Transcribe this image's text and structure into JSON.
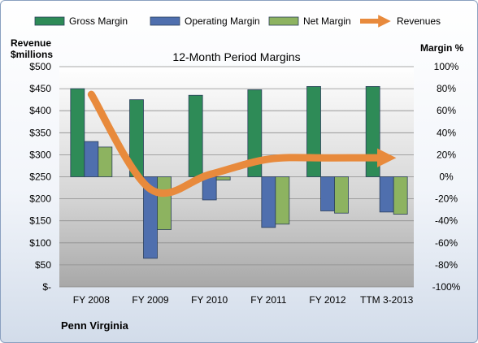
{
  "chart_data": {
    "type": "bar",
    "title": "12-Month Period Margins",
    "categories": [
      "FY 2008",
      "FY 2009",
      "FY 2010",
      "FY 2011",
      "FY 2012",
      "TTM 3-2013"
    ],
    "series": [
      {
        "name": "Gross Margin",
        "axis": "right",
        "color": "#2e8b57",
        "values": [
          80,
          70,
          74,
          79,
          82,
          82
        ]
      },
      {
        "name": "Operating Margin",
        "axis": "right",
        "color": "#4f6fae",
        "values": [
          32,
          -74,
          -21,
          -46,
          -31,
          -32
        ]
      },
      {
        "name": "Net Margin",
        "axis": "right",
        "color": "#8db360",
        "values": [
          27,
          -48,
          -3,
          -43,
          -33,
          -34
        ]
      },
      {
        "name": "Revenues",
        "axis": "left",
        "type": "line",
        "color": "#e88a3c",
        "values": [
          437,
          222,
          255,
          290,
          293,
          293
        ]
      }
    ],
    "y_left": {
      "label_line1": "Revenue",
      "label_line2": "$millions",
      "range": [
        0,
        500
      ],
      "ticks": [
        "$-",
        "$50",
        "$100",
        "$150",
        "$200",
        "$250",
        "$300",
        "$350",
        "$400",
        "$450",
        "$500"
      ]
    },
    "y_right": {
      "label": "Margin %",
      "range": [
        -100,
        100
      ],
      "ticks": [
        "-100%",
        "-80%",
        "-60%",
        "-40%",
        "-20%",
        "0%",
        "20%",
        "40%",
        "60%",
        "80%",
        "100%"
      ]
    },
    "legend": "top",
    "footer": "Penn Virginia"
  }
}
